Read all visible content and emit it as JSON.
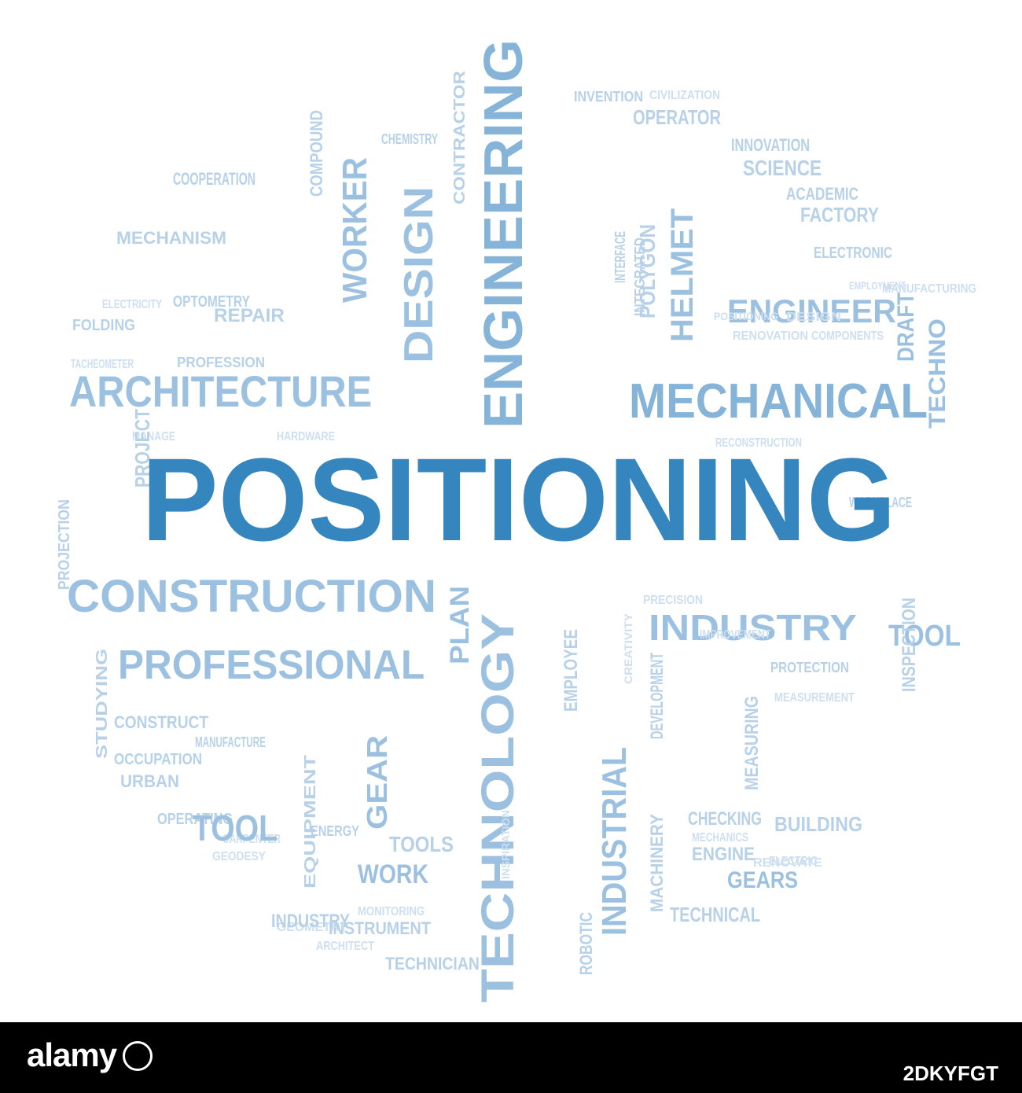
{
  "word_cloud": {
    "main_word": "POSITIONING",
    "words": [
      "ENGINEERING",
      "MECHANICAL",
      "ARCHITECTURE",
      "CONSTRUCTION",
      "PROFESSIONAL",
      "TECHNOLOGY",
      "INDUSTRY",
      "ENGINEER",
      "DESIGN",
      "WORKER",
      "HELMET",
      "INDUSTRIAL",
      "GEAR",
      "PLAN",
      "TOOL",
      "TECHNO",
      "DRAFT",
      "SCIENCE",
      "FACTORY",
      "ACADEMIC",
      "MECHANISM",
      "REPAIR",
      "FOLDING",
      "TACHEOMETER",
      "PROFESSION",
      "HARDWARE",
      "CONSTRUCT",
      "OCCUPATION",
      "URBAN",
      "OPERATING",
      "GEODESY",
      "CARPENTER",
      "INSTRUMENT",
      "TECHNICIAN",
      "ARCHITECT",
      "GEOMETRY",
      "MONITORING",
      "WORK",
      "TOOLS",
      "GEARS",
      "TECHNICAL",
      "BUILDING",
      "CHECKING",
      "MECHANICS",
      "ENGINE",
      "ELECTRIC",
      "INNOVATION",
      "OPERATOR",
      "INVENTION",
      "CIVILIZATION",
      "ELECTRONIC",
      "MEASURING",
      "INSPECTION",
      "EMPLOYEE",
      "DEVELOPMENT",
      "ROBOTIC",
      "MACHINERY",
      "EQUIPMENT",
      "ENERGY",
      "CHEMISTRY",
      "COOPERATION",
      "CONTRACTOR",
      "PRECISION",
      "INTERFACE",
      "POLYGON",
      "INTEGRATED",
      "RECONSTRUCTION",
      "RENOVATION",
      "COMPONENTS",
      "MEASUREMENT",
      "PROJECTION",
      "INSPIRATION",
      "MANAGE",
      "WORKPLACE",
      "STUDYING",
      "CREATIVITY",
      "PROTECTION",
      "IMPROVEMENT",
      "EMPLOYMENT",
      "COMPOUND",
      "OPTOMETRY",
      "MANUFACTURE",
      "MANUFACTURING",
      "ELECTRICITY",
      "RENOVATE",
      "PROJECT",
      "POSITIONING",
      "DESIGN",
      "INDUSTRY",
      "TOOL"
    ]
  },
  "footer": {
    "brand": "alamy",
    "image_id": "2DKYFGT"
  },
  "colors": {
    "main": "#3585bf",
    "large": "#86b3d8",
    "medium": "#9cc1e0",
    "small": "#b7d1e8",
    "tiny": "#cddff0",
    "footer_bg": "#000000",
    "footer_text": "#ffffff"
  }
}
